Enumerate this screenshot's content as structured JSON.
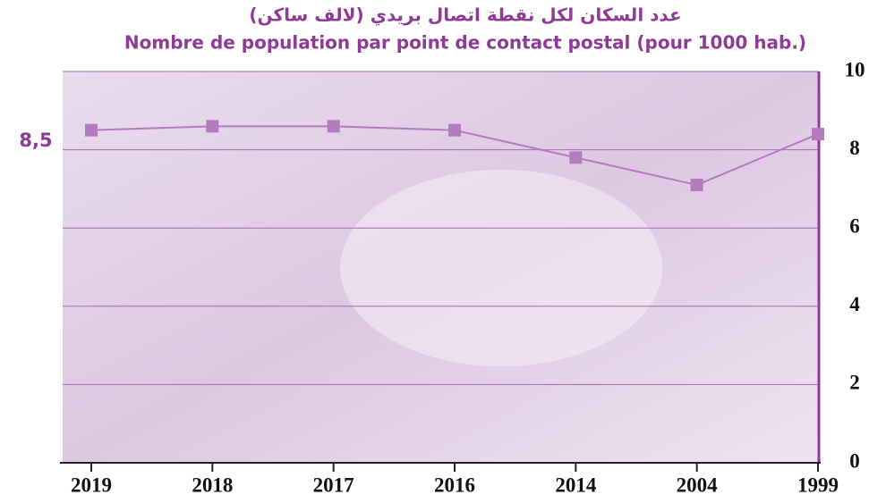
{
  "chart_data": {
    "type": "line",
    "title": "عدد السكان لكل نقطة اتصال بريدي (لالف ساكن)",
    "subtitle": "Nombre de population par point de contact postal (pour 1000 hab.)",
    "categories": [
      "2019",
      "2018",
      "2017",
      "2016",
      "2014",
      "2004",
      "1999"
    ],
    "values": [
      8.5,
      8.6,
      8.6,
      8.5,
      7.8,
      7.1,
      8.4
    ],
    "color": "#b57bbf",
    "ylim": [
      0,
      10
    ],
    "yticks": [
      0,
      2,
      4,
      6,
      8,
      10
    ],
    "grid": true,
    "annotation": "8,5"
  }
}
